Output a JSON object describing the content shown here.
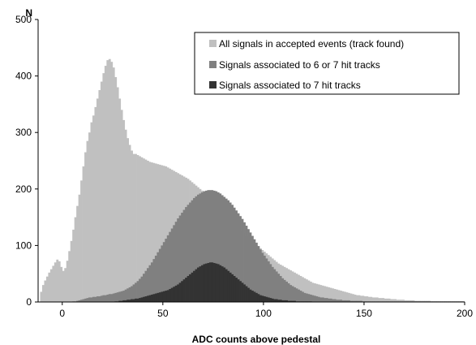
{
  "chart_data": {
    "type": "bar",
    "xlabel": "ADC counts above pedestal",
    "ylabel": "N",
    "xlim": [
      -12,
      200
    ],
    "ylim": [
      0,
      500
    ],
    "xticks": [
      0,
      50,
      100,
      150,
      200
    ],
    "yticks": [
      0,
      100,
      200,
      300,
      400,
      500
    ],
    "bin_width": 1,
    "grid": false,
    "legend_position": "top-right",
    "series": [
      {
        "name": "All signals in accepted events (track found)",
        "color": "#c0c0c0",
        "x_start": -11,
        "values": [
          18,
          30,
          38,
          45,
          52,
          58,
          64,
          70,
          75,
          72,
          62,
          55,
          60,
          73,
          90,
          108,
          128,
          150,
          170,
          190,
          215,
          240,
          265,
          285,
          300,
          318,
          330,
          345,
          360,
          375,
          390,
          405,
          418,
          428,
          430,
          425,
          415,
          398,
          380,
          360,
          340,
          322,
          305,
          290,
          278,
          268,
          262,
          262,
          260,
          258,
          256,
          254,
          252,
          250,
          248,
          247,
          246,
          245,
          244,
          243,
          242,
          241,
          240,
          238,
          236,
          234,
          232,
          230,
          228,
          226,
          224,
          222,
          220,
          218,
          215,
          212,
          209,
          206,
          203,
          200,
          197,
          194,
          191,
          188,
          185,
          182,
          178,
          174,
          170,
          166,
          162,
          158,
          154,
          150,
          146,
          142,
          138,
          134,
          130,
          126,
          122,
          119,
          116,
          113,
          110,
          107,
          104,
          101,
          98,
          95,
          92,
          89,
          86,
          83,
          80,
          77,
          74,
          71,
          68,
          66,
          64,
          62,
          60,
          58,
          56,
          54,
          52,
          50,
          48,
          46,
          44,
          42,
          40,
          38,
          36,
          34,
          33,
          32,
          31,
          30,
          29,
          28,
          27,
          26,
          25,
          24,
          23,
          22,
          21,
          20,
          19,
          18,
          17,
          16,
          15,
          14,
          13,
          12,
          12,
          11,
          11,
          10,
          10,
          9,
          9,
          8,
          8,
          8,
          7,
          7,
          7,
          6,
          6,
          6,
          5,
          5,
          5,
          4,
          4,
          4,
          4,
          3,
          3,
          3,
          3,
          3,
          2,
          2,
          2,
          2,
          2,
          2,
          2,
          2,
          1,
          1,
          1,
          1,
          1,
          1,
          1,
          1,
          1,
          1,
          1,
          1,
          1,
          1,
          1,
          1
        ]
      },
      {
        "name": "Signals associated to 6 or 7 hit tracks",
        "color": "#808080",
        "x_start": -11,
        "values": [
          0,
          0,
          0,
          0,
          0,
          0,
          0,
          0,
          0,
          0,
          0,
          0,
          0,
          0,
          0,
          0,
          1,
          1,
          2,
          3,
          4,
          5,
          6,
          7,
          8,
          8,
          9,
          9,
          10,
          10,
          11,
          12,
          12,
          13,
          14,
          14,
          15,
          16,
          17,
          18,
          19,
          20,
          22,
          24,
          26,
          28,
          31,
          34,
          37,
          41,
          45,
          50,
          55,
          60,
          65,
          70,
          76,
          82,
          88,
          94,
          100,
          106,
          112,
          118,
          124,
          130,
          136,
          142,
          148,
          153,
          158,
          163,
          168,
          172,
          176,
          180,
          184,
          187,
          190,
          192,
          194,
          196,
          197,
          198,
          198,
          198,
          197,
          196,
          194,
          192,
          189,
          186,
          183,
          180,
          176,
          172,
          167,
          162,
          157,
          152,
          147,
          141,
          135,
          129,
          123,
          117,
          111,
          105,
          99,
          93,
          87,
          82,
          77,
          72,
          67,
          62,
          58,
          54,
          50,
          46,
          42,
          39,
          36,
          33,
          30,
          28,
          26,
          24,
          22,
          20,
          18,
          16,
          15,
          14,
          13,
          12,
          11,
          10,
          9,
          8,
          8,
          7,
          7,
          6,
          6,
          5,
          5,
          4,
          4,
          4,
          3,
          3,
          3,
          3,
          2,
          2,
          2,
          2,
          2,
          2,
          1,
          1,
          1,
          1,
          1,
          1,
          1,
          1,
          1,
          1,
          1,
          1,
          1,
          1,
          1,
          1,
          1,
          1,
          1,
          1,
          1,
          1,
          1,
          1,
          1,
          1,
          1,
          1,
          1,
          1,
          1,
          1,
          1,
          1,
          1,
          1,
          1,
          1,
          1,
          1,
          1,
          1,
          1,
          1,
          1,
          1,
          1,
          1,
          1,
          1,
          1
        ]
      },
      {
        "name": "Signals associated to 7 hit tracks",
        "color": "#333333",
        "x_start": -11,
        "values": [
          0,
          0,
          0,
          0,
          0,
          0,
          0,
          0,
          0,
          0,
          0,
          0,
          0,
          0,
          0,
          0,
          0,
          0,
          0,
          0,
          0,
          0,
          0,
          0,
          0,
          0,
          0,
          0,
          0,
          0,
          0,
          0,
          0,
          0,
          0,
          0,
          0,
          1,
          1,
          2,
          2,
          3,
          3,
          4,
          4,
          5,
          5,
          6,
          6,
          7,
          8,
          9,
          10,
          11,
          12,
          13,
          14,
          15,
          16,
          17,
          18,
          19,
          20,
          21,
          23,
          25,
          27,
          29,
          31,
          34,
          37,
          40,
          43,
          46,
          49,
          52,
          55,
          58,
          61,
          63,
          65,
          67,
          68,
          69,
          70,
          70,
          69,
          68,
          67,
          65,
          63,
          61,
          58,
          55,
          52,
          49,
          46,
          43,
          40,
          37,
          34,
          31,
          28,
          25,
          22,
          20,
          18,
          16,
          14,
          12,
          11,
          10,
          9,
          8,
          7,
          6,
          5,
          5,
          4,
          4,
          3,
          3,
          3,
          2,
          2,
          2,
          2,
          1,
          1,
          1,
          1,
          1,
          1,
          1,
          1,
          0,
          0,
          0,
          0,
          0,
          0,
          0,
          0,
          0,
          0,
          0,
          0,
          0,
          0,
          0,
          0,
          0,
          0,
          0,
          0,
          0,
          0,
          0,
          0,
          0,
          0,
          0,
          0,
          0,
          0,
          0,
          0,
          0,
          0,
          0,
          0,
          0,
          0,
          0,
          0,
          0,
          0,
          0,
          0,
          0,
          0,
          0,
          0,
          0,
          0,
          0,
          0,
          0,
          0,
          0,
          0,
          0,
          0,
          0,
          0,
          0,
          0,
          0,
          0,
          0,
          0,
          0,
          0,
          0,
          0,
          0
        ]
      }
    ]
  }
}
